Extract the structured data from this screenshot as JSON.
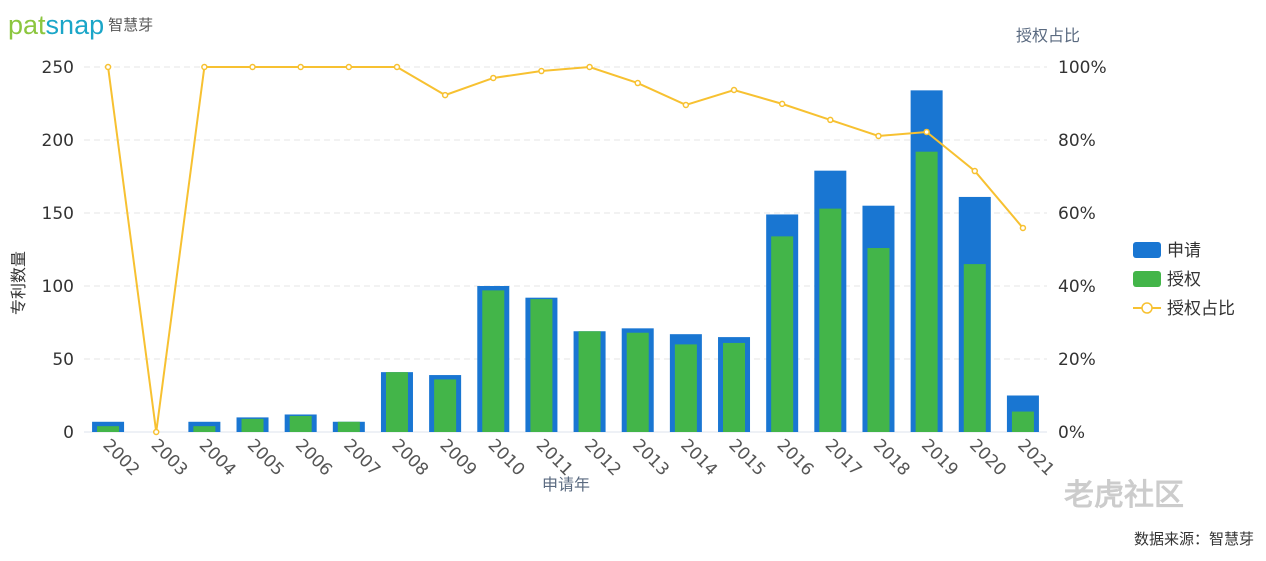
{
  "logo": {
    "text_a": "pat",
    "text_b": "snap",
    "cn": "智慧芽"
  },
  "source": "数据来源：智慧芽",
  "watermark": "老虎社区",
  "chart_data": {
    "type": "bar",
    "xlabel": "申请年",
    "ylabel": "专利数量",
    "y2label": "授权占比",
    "ylim": [
      0,
      250
    ],
    "y2lim": [
      0,
      100
    ],
    "yticks": [
      "0",
      "50",
      "100",
      "150",
      "200",
      "250"
    ],
    "y2ticks": [
      "0%",
      "20%",
      "40%",
      "60%",
      "80%",
      "100%"
    ],
    "grid": true,
    "legend_position": "right",
    "categories": [
      "2002",
      "2003",
      "2004",
      "2005",
      "2006",
      "2007",
      "2008",
      "2009",
      "2010",
      "2011",
      "2012",
      "2013",
      "2014",
      "2015",
      "2016",
      "2017",
      "2018",
      "2019",
      "2020",
      "2021"
    ],
    "series": [
      {
        "name": "申请",
        "type": "bar",
        "color": "#1976d2",
        "values": [
          7,
          0,
          7,
          10,
          12,
          7,
          41,
          39,
          100,
          92,
          69,
          71,
          67,
          65,
          149,
          179,
          155,
          234,
          161,
          25
        ]
      },
      {
        "name": "授权",
        "type": "bar",
        "color": "#43b549",
        "values": [
          4,
          0,
          4,
          9,
          11,
          7,
          41,
          36,
          97,
          91,
          69,
          68,
          60,
          61,
          134,
          153,
          126,
          192,
          115,
          14
        ]
      },
      {
        "name": "授权占比",
        "type": "line",
        "axis": "right",
        "color": "#f7c131",
        "values": [
          100,
          0,
          100,
          100,
          100,
          100,
          100,
          92.3,
          97,
          98.9,
          100,
          95.6,
          89.6,
          93.7,
          89.9,
          85.5,
          81.1,
          82.2,
          71.5,
          55.9
        ]
      }
    ]
  }
}
